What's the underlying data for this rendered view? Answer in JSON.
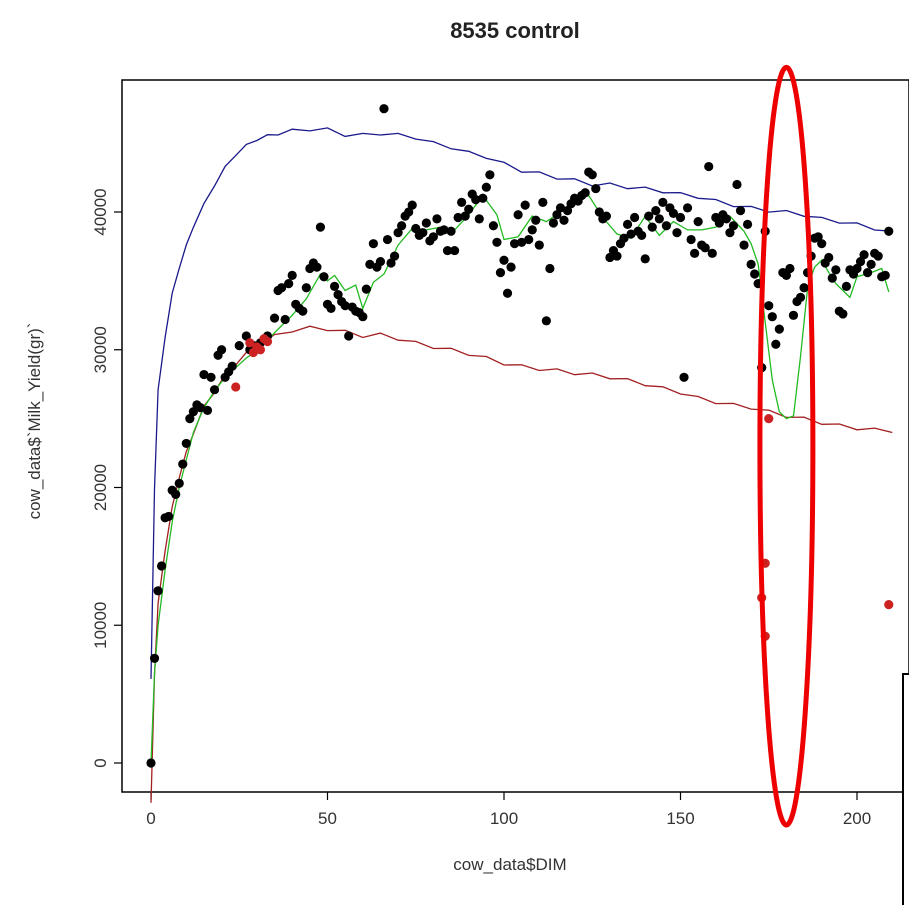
{
  "chart_data": {
    "type": "scatter",
    "title": "8535 control",
    "xlabel": "cow_data$DIM",
    "ylabel": "cow_data$`Milk_Yield(gr)`",
    "xlim": [
      -4,
      211
    ],
    "ylim": [
      -2000,
      49000
    ],
    "x_ticks": [
      0,
      50,
      100,
      150,
      200
    ],
    "x_tick_labels": [
      "0",
      "50",
      "100",
      "150",
      "200"
    ],
    "y_ticks": [
      0,
      10000,
      20000,
      30000,
      40000
    ],
    "y_tick_labels": [
      "0",
      "10000",
      "20000",
      "30000",
      "40000"
    ],
    "grid": false,
    "colors": {
      "points": "#000000",
      "outliers": "#cc2222",
      "upper_line": "#1a1a8c",
      "lower_line": "#a32020",
      "smooth_line": "#22bb22",
      "highlight": "#ee0000"
    },
    "series": [
      {
        "kind": "points",
        "points": [
          [
            0,
            0
          ],
          [
            1,
            7600
          ],
          [
            2,
            12500
          ],
          [
            3,
            14300
          ],
          [
            4,
            17800
          ],
          [
            5,
            17900
          ],
          [
            6,
            19800
          ],
          [
            7,
            19500
          ],
          [
            8,
            20300
          ],
          [
            9,
            21700
          ],
          [
            10,
            23200
          ],
          [
            11,
            25000
          ],
          [
            12,
            25500
          ],
          [
            13,
            26000
          ],
          [
            14,
            25800
          ],
          [
            15,
            28200
          ],
          [
            16,
            25600
          ],
          [
            17,
            28000
          ],
          [
            18,
            27100
          ],
          [
            19,
            29600
          ],
          [
            20,
            30000
          ],
          [
            21,
            28000
          ],
          [
            22,
            28400
          ],
          [
            23,
            28800
          ],
          [
            25,
            30300
          ],
          [
            27,
            31000
          ],
          [
            28,
            30000
          ],
          [
            29,
            30300
          ],
          [
            31,
            30500
          ],
          [
            33,
            31000
          ],
          [
            35,
            32300
          ],
          [
            36,
            34300
          ],
          [
            37,
            34500
          ],
          [
            38,
            32200
          ],
          [
            39,
            34800
          ],
          [
            40,
            35400
          ],
          [
            41,
            33300
          ],
          [
            42,
            33000
          ],
          [
            43,
            32800
          ],
          [
            44,
            34500
          ],
          [
            45,
            35900
          ],
          [
            46,
            36300
          ],
          [
            47,
            36000
          ],
          [
            48,
            38900
          ],
          [
            49,
            35300
          ],
          [
            50,
            33300
          ],
          [
            51,
            33000
          ],
          [
            52,
            34600
          ],
          [
            53,
            34000
          ],
          [
            54,
            33500
          ],
          [
            55,
            33200
          ],
          [
            56,
            31000
          ],
          [
            57,
            33100
          ],
          [
            58,
            32800
          ],
          [
            59,
            32700
          ],
          [
            60,
            32400
          ],
          [
            61,
            34400
          ],
          [
            62,
            36200
          ],
          [
            63,
            37700
          ],
          [
            64,
            36000
          ],
          [
            65,
            36400
          ],
          [
            66,
            47500
          ],
          [
            67,
            38000
          ],
          [
            68,
            36300
          ],
          [
            69,
            36800
          ],
          [
            70,
            38500
          ],
          [
            71,
            39000
          ],
          [
            72,
            39700
          ],
          [
            73,
            40000
          ],
          [
            74,
            40500
          ],
          [
            75,
            38800
          ],
          [
            76,
            38300
          ],
          [
            77,
            38500
          ],
          [
            78,
            39200
          ],
          [
            79,
            37900
          ],
          [
            80,
            38200
          ],
          [
            81,
            39500
          ],
          [
            82,
            38600
          ],
          [
            83,
            38700
          ],
          [
            84,
            37200
          ],
          [
            85,
            38600
          ],
          [
            86,
            37200
          ],
          [
            87,
            39600
          ],
          [
            88,
            40700
          ],
          [
            89,
            39700
          ],
          [
            90,
            40200
          ],
          [
            91,
            41300
          ],
          [
            92,
            40900
          ],
          [
            93,
            39500
          ],
          [
            94,
            41000
          ],
          [
            95,
            41800
          ],
          [
            96,
            42700
          ],
          [
            97,
            39000
          ],
          [
            98,
            37800
          ],
          [
            99,
            35600
          ],
          [
            100,
            36500
          ],
          [
            101,
            34100
          ],
          [
            102,
            36000
          ],
          [
            103,
            37700
          ],
          [
            104,
            39800
          ],
          [
            105,
            37800
          ],
          [
            106,
            40500
          ],
          [
            107,
            38000
          ],
          [
            108,
            38700
          ],
          [
            109,
            39400
          ],
          [
            110,
            37600
          ],
          [
            111,
            40700
          ],
          [
            112,
            32100
          ],
          [
            113,
            35900
          ],
          [
            114,
            39200
          ],
          [
            115,
            39800
          ],
          [
            116,
            40300
          ],
          [
            117,
            39400
          ],
          [
            118,
            40100
          ],
          [
            119,
            40600
          ],
          [
            120,
            41000
          ],
          [
            121,
            40800
          ],
          [
            122,
            41200
          ],
          [
            123,
            41400
          ],
          [
            124,
            42900
          ],
          [
            125,
            42700
          ],
          [
            126,
            41700
          ],
          [
            127,
            40000
          ],
          [
            128,
            39500
          ],
          [
            129,
            39700
          ],
          [
            130,
            36700
          ],
          [
            131,
            37200
          ],
          [
            132,
            36800
          ],
          [
            133,
            37700
          ],
          [
            134,
            38100
          ],
          [
            135,
            39100
          ],
          [
            136,
            38400
          ],
          [
            137,
            39600
          ],
          [
            138,
            38600
          ],
          [
            139,
            38300
          ],
          [
            140,
            36600
          ],
          [
            141,
            39700
          ],
          [
            142,
            38900
          ],
          [
            143,
            40100
          ],
          [
            144,
            39500
          ],
          [
            145,
            40700
          ],
          [
            146,
            39000
          ],
          [
            147,
            40300
          ],
          [
            148,
            39900
          ],
          [
            149,
            38500
          ],
          [
            150,
            39600
          ],
          [
            151,
            28000
          ],
          [
            152,
            40300
          ],
          [
            153,
            38000
          ],
          [
            154,
            37000
          ],
          [
            155,
            39300
          ],
          [
            156,
            37600
          ],
          [
            157,
            37400
          ],
          [
            158,
            43300
          ],
          [
            159,
            37000
          ],
          [
            160,
            39600
          ],
          [
            161,
            39200
          ],
          [
            162,
            39800
          ],
          [
            163,
            39500
          ],
          [
            164,
            38500
          ],
          [
            165,
            39000
          ],
          [
            166,
            42000
          ],
          [
            167,
            40100
          ],
          [
            168,
            37600
          ],
          [
            169,
            39100
          ],
          [
            170,
            36200
          ],
          [
            171,
            35500
          ],
          [
            172,
            34800
          ],
          [
            173,
            28700
          ],
          [
            174,
            38600
          ],
          [
            175,
            33200
          ],
          [
            176,
            32400
          ],
          [
            177,
            30400
          ],
          [
            178,
            31500
          ],
          [
            179,
            35600
          ],
          [
            180,
            35400
          ],
          [
            181,
            35900
          ],
          [
            182,
            32500
          ],
          [
            183,
            33500
          ],
          [
            184,
            33800
          ],
          [
            185,
            34500
          ],
          [
            186,
            35600
          ],
          [
            187,
            36800
          ],
          [
            188,
            38100
          ],
          [
            189,
            38200
          ],
          [
            190,
            37700
          ],
          [
            191,
            36300
          ],
          [
            192,
            36700
          ],
          [
            193,
            35200
          ],
          [
            194,
            35800
          ],
          [
            195,
            32800
          ],
          [
            196,
            32600
          ],
          [
            197,
            34600
          ],
          [
            198,
            35800
          ],
          [
            199,
            35500
          ],
          [
            200,
            35900
          ],
          [
            201,
            36400
          ],
          [
            202,
            36900
          ],
          [
            203,
            35600
          ],
          [
            204,
            36200
          ],
          [
            205,
            37000
          ],
          [
            206,
            36800
          ],
          [
            207,
            35300
          ],
          [
            208,
            35400
          ],
          [
            209,
            38600
          ]
        ]
      },
      {
        "kind": "outliers",
        "points": [
          [
            24,
            27300
          ],
          [
            28,
            30500
          ],
          [
            29,
            29800
          ],
          [
            30,
            30200
          ],
          [
            31,
            30000
          ],
          [
            32,
            30800
          ],
          [
            33,
            30600
          ],
          [
            175,
            25000
          ],
          [
            174,
            14500
          ],
          [
            173,
            12000
          ],
          [
            174,
            9200
          ],
          [
            209,
            11500
          ]
        ]
      },
      {
        "kind": "line",
        "role": "upper",
        "x": [
          0,
          1,
          2,
          4,
          6,
          8,
          10,
          12,
          15,
          18,
          21,
          24,
          27,
          30,
          33,
          36,
          40,
          45,
          50,
          55,
          60,
          65,
          70,
          75,
          80,
          85,
          90,
          95,
          100,
          105,
          110,
          115,
          120,
          125,
          130,
          135,
          140,
          145,
          150,
          155,
          160,
          165,
          170,
          175,
          180,
          185,
          190,
          195,
          200,
          205,
          210
        ],
        "y": [
          6000,
          20000,
          27000,
          31000,
          34000,
          36000,
          37500,
          39000,
          40500,
          42000,
          43200,
          44200,
          44800,
          45300,
          45500,
          45700,
          45900,
          46000,
          46000,
          45600,
          45600,
          45700,
          45600,
          45400,
          45000,
          44700,
          44300,
          44000,
          43500,
          43000,
          42800,
          42500,
          42300,
          42000,
          42000,
          41800,
          41700,
          41500,
          41300,
          41100,
          40800,
          40500,
          40300,
          40100,
          40000,
          39800,
          39500,
          39300,
          39100,
          38800,
          38500
        ]
      },
      {
        "kind": "line",
        "role": "lower",
        "x": [
          0,
          1,
          2,
          4,
          6,
          8,
          10,
          12,
          15,
          18,
          21,
          24,
          27,
          30,
          35,
          40,
          45,
          50,
          55,
          60,
          65,
          70,
          75,
          80,
          85,
          90,
          95,
          100,
          105,
          110,
          115,
          120,
          125,
          130,
          135,
          140,
          145,
          150,
          155,
          160,
          165,
          170,
          175,
          180,
          185,
          190,
          195,
          200,
          205,
          210
        ],
        "y": [
          -3000,
          6500,
          11500,
          15500,
          18500,
          20800,
          22500,
          24000,
          25800,
          27000,
          28100,
          29000,
          29700,
          30300,
          31000,
          31400,
          31600,
          31500,
          31300,
          31000,
          31100,
          30800,
          30500,
          30200,
          30000,
          29700,
          29400,
          29000,
          28800,
          28600,
          28500,
          28300,
          28200,
          28000,
          27800,
          27500,
          27200,
          26900,
          26500,
          26200,
          26000,
          25800,
          25500,
          25200,
          25000,
          24700,
          24500,
          24300,
          24200,
          24100
        ]
      },
      {
        "kind": "line",
        "role": "smooth",
        "x": [
          0,
          1,
          2,
          4,
          6,
          8,
          10,
          12,
          15,
          18,
          21,
          24,
          27,
          30,
          33,
          36,
          40,
          44,
          48,
          50,
          52,
          55,
          58,
          60,
          63,
          66,
          70,
          74,
          78,
          82,
          86,
          90,
          94,
          98,
          100,
          104,
          108,
          112,
          116,
          120,
          124,
          128,
          132,
          136,
          140,
          144,
          148,
          152,
          156,
          160,
          164,
          168,
          170,
          172,
          174,
          176,
          178,
          180,
          182,
          184,
          186,
          188,
          190,
          192,
          194,
          196,
          198,
          200,
          204,
          207,
          209
        ],
        "y": [
          0,
          6500,
          10000,
          14000,
          17500,
          20000,
          22000,
          24000,
          25800,
          27000,
          28000,
          28700,
          29400,
          29900,
          30700,
          31500,
          32500,
          33700,
          35500,
          35000,
          35400,
          34300,
          34700,
          33000,
          34900,
          35500,
          37600,
          38800,
          38700,
          38900,
          38700,
          39800,
          41200,
          39800,
          38000,
          38200,
          39700,
          39300,
          40000,
          40900,
          41200,
          39600,
          38400,
          38100,
          39700,
          38300,
          39300,
          38700,
          38700,
          38900,
          39700,
          38600,
          37700,
          36200,
          32000,
          27800,
          25500,
          25000,
          25200,
          29500,
          34500,
          36000,
          36500,
          35600,
          34800,
          34300,
          33800,
          35300,
          35600,
          35900,
          34200
        ]
      }
    ],
    "annotation": {
      "shape": "ellipse",
      "center_x": 180,
      "center_y": 23000,
      "rx": 7.5,
      "ry": 27500,
      "color": "#ee0000"
    }
  }
}
